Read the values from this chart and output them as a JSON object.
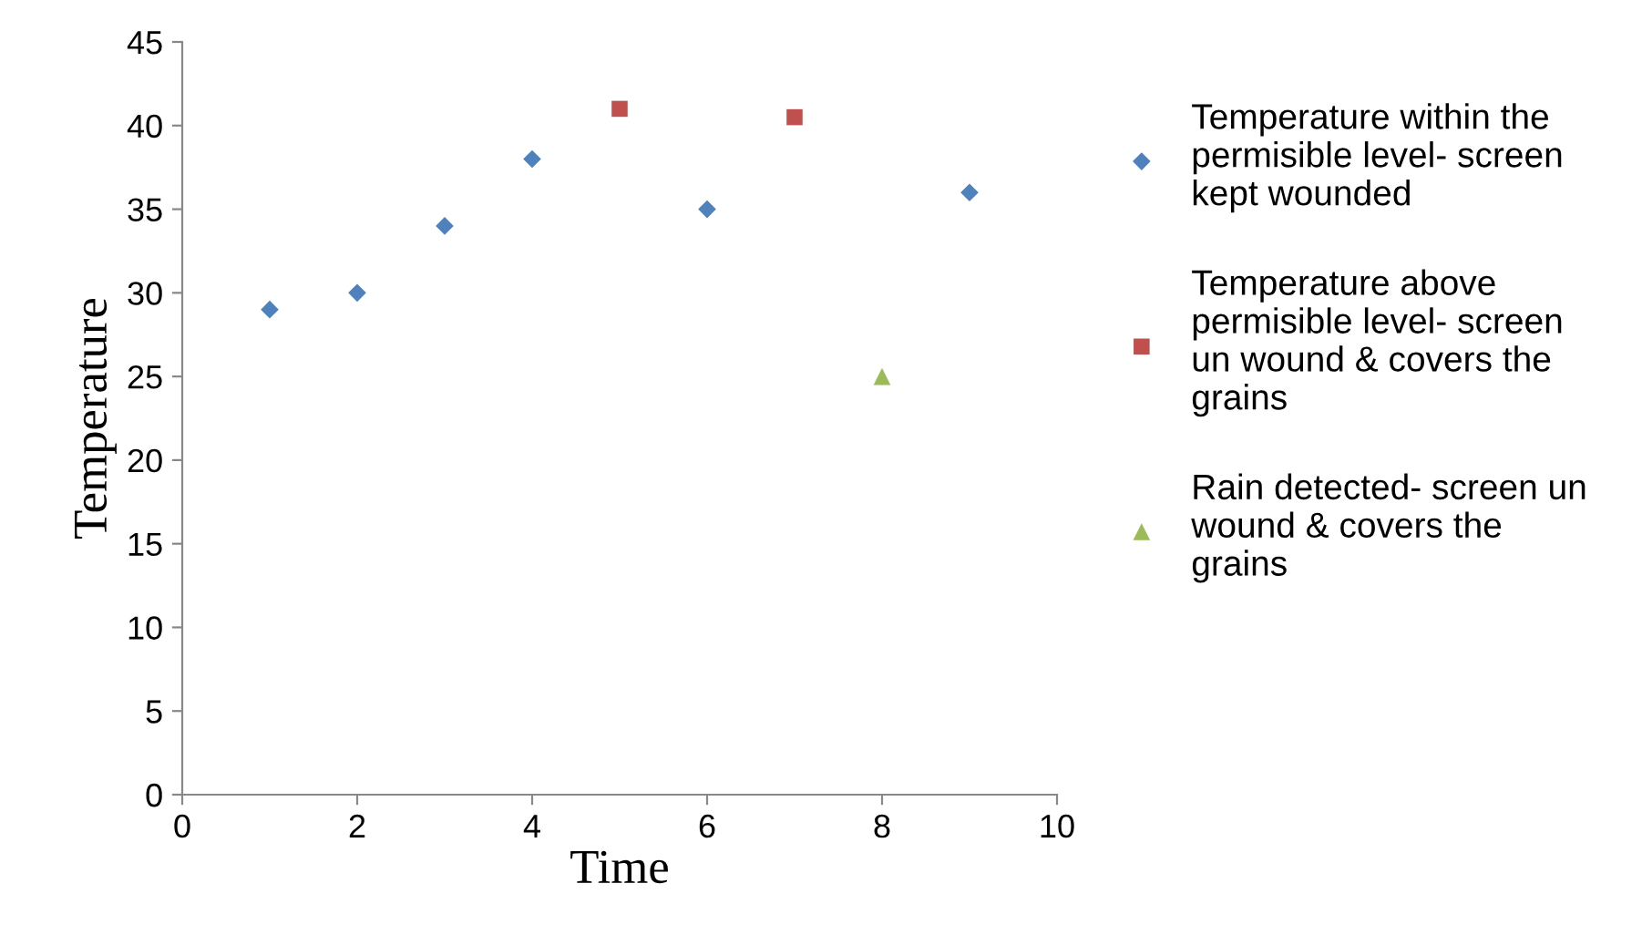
{
  "chart_data": {
    "type": "scatter",
    "xlabel": "Time",
    "ylabel": "Temperature",
    "xlim": [
      0,
      10
    ],
    "ylim": [
      0,
      45
    ],
    "xticks": [
      0,
      2,
      4,
      6,
      8,
      10
    ],
    "yticks": [
      0,
      5,
      10,
      15,
      20,
      25,
      30,
      35,
      40,
      45
    ],
    "grid": false,
    "legend": "right",
    "series": [
      {
        "name": "Temperature within the permisible level- screen kept wounded",
        "color": "#4f81bd",
        "marker": "diamond",
        "x": [
          1,
          2,
          3,
          4,
          6,
          9
        ],
        "values": [
          29,
          30,
          34,
          38,
          35,
          36
        ]
      },
      {
        "name": "Temperature above permisible level- screen un wound & covers the grains",
        "color": "#c0504d",
        "marker": "square",
        "x": [
          5,
          7
        ],
        "values": [
          41,
          40.5
        ]
      },
      {
        "name": "Rain detected- screen un wound & covers the grains",
        "color": "#9bbb59",
        "marker": "triangle",
        "x": [
          8
        ],
        "values": [
          25
        ]
      }
    ]
  }
}
